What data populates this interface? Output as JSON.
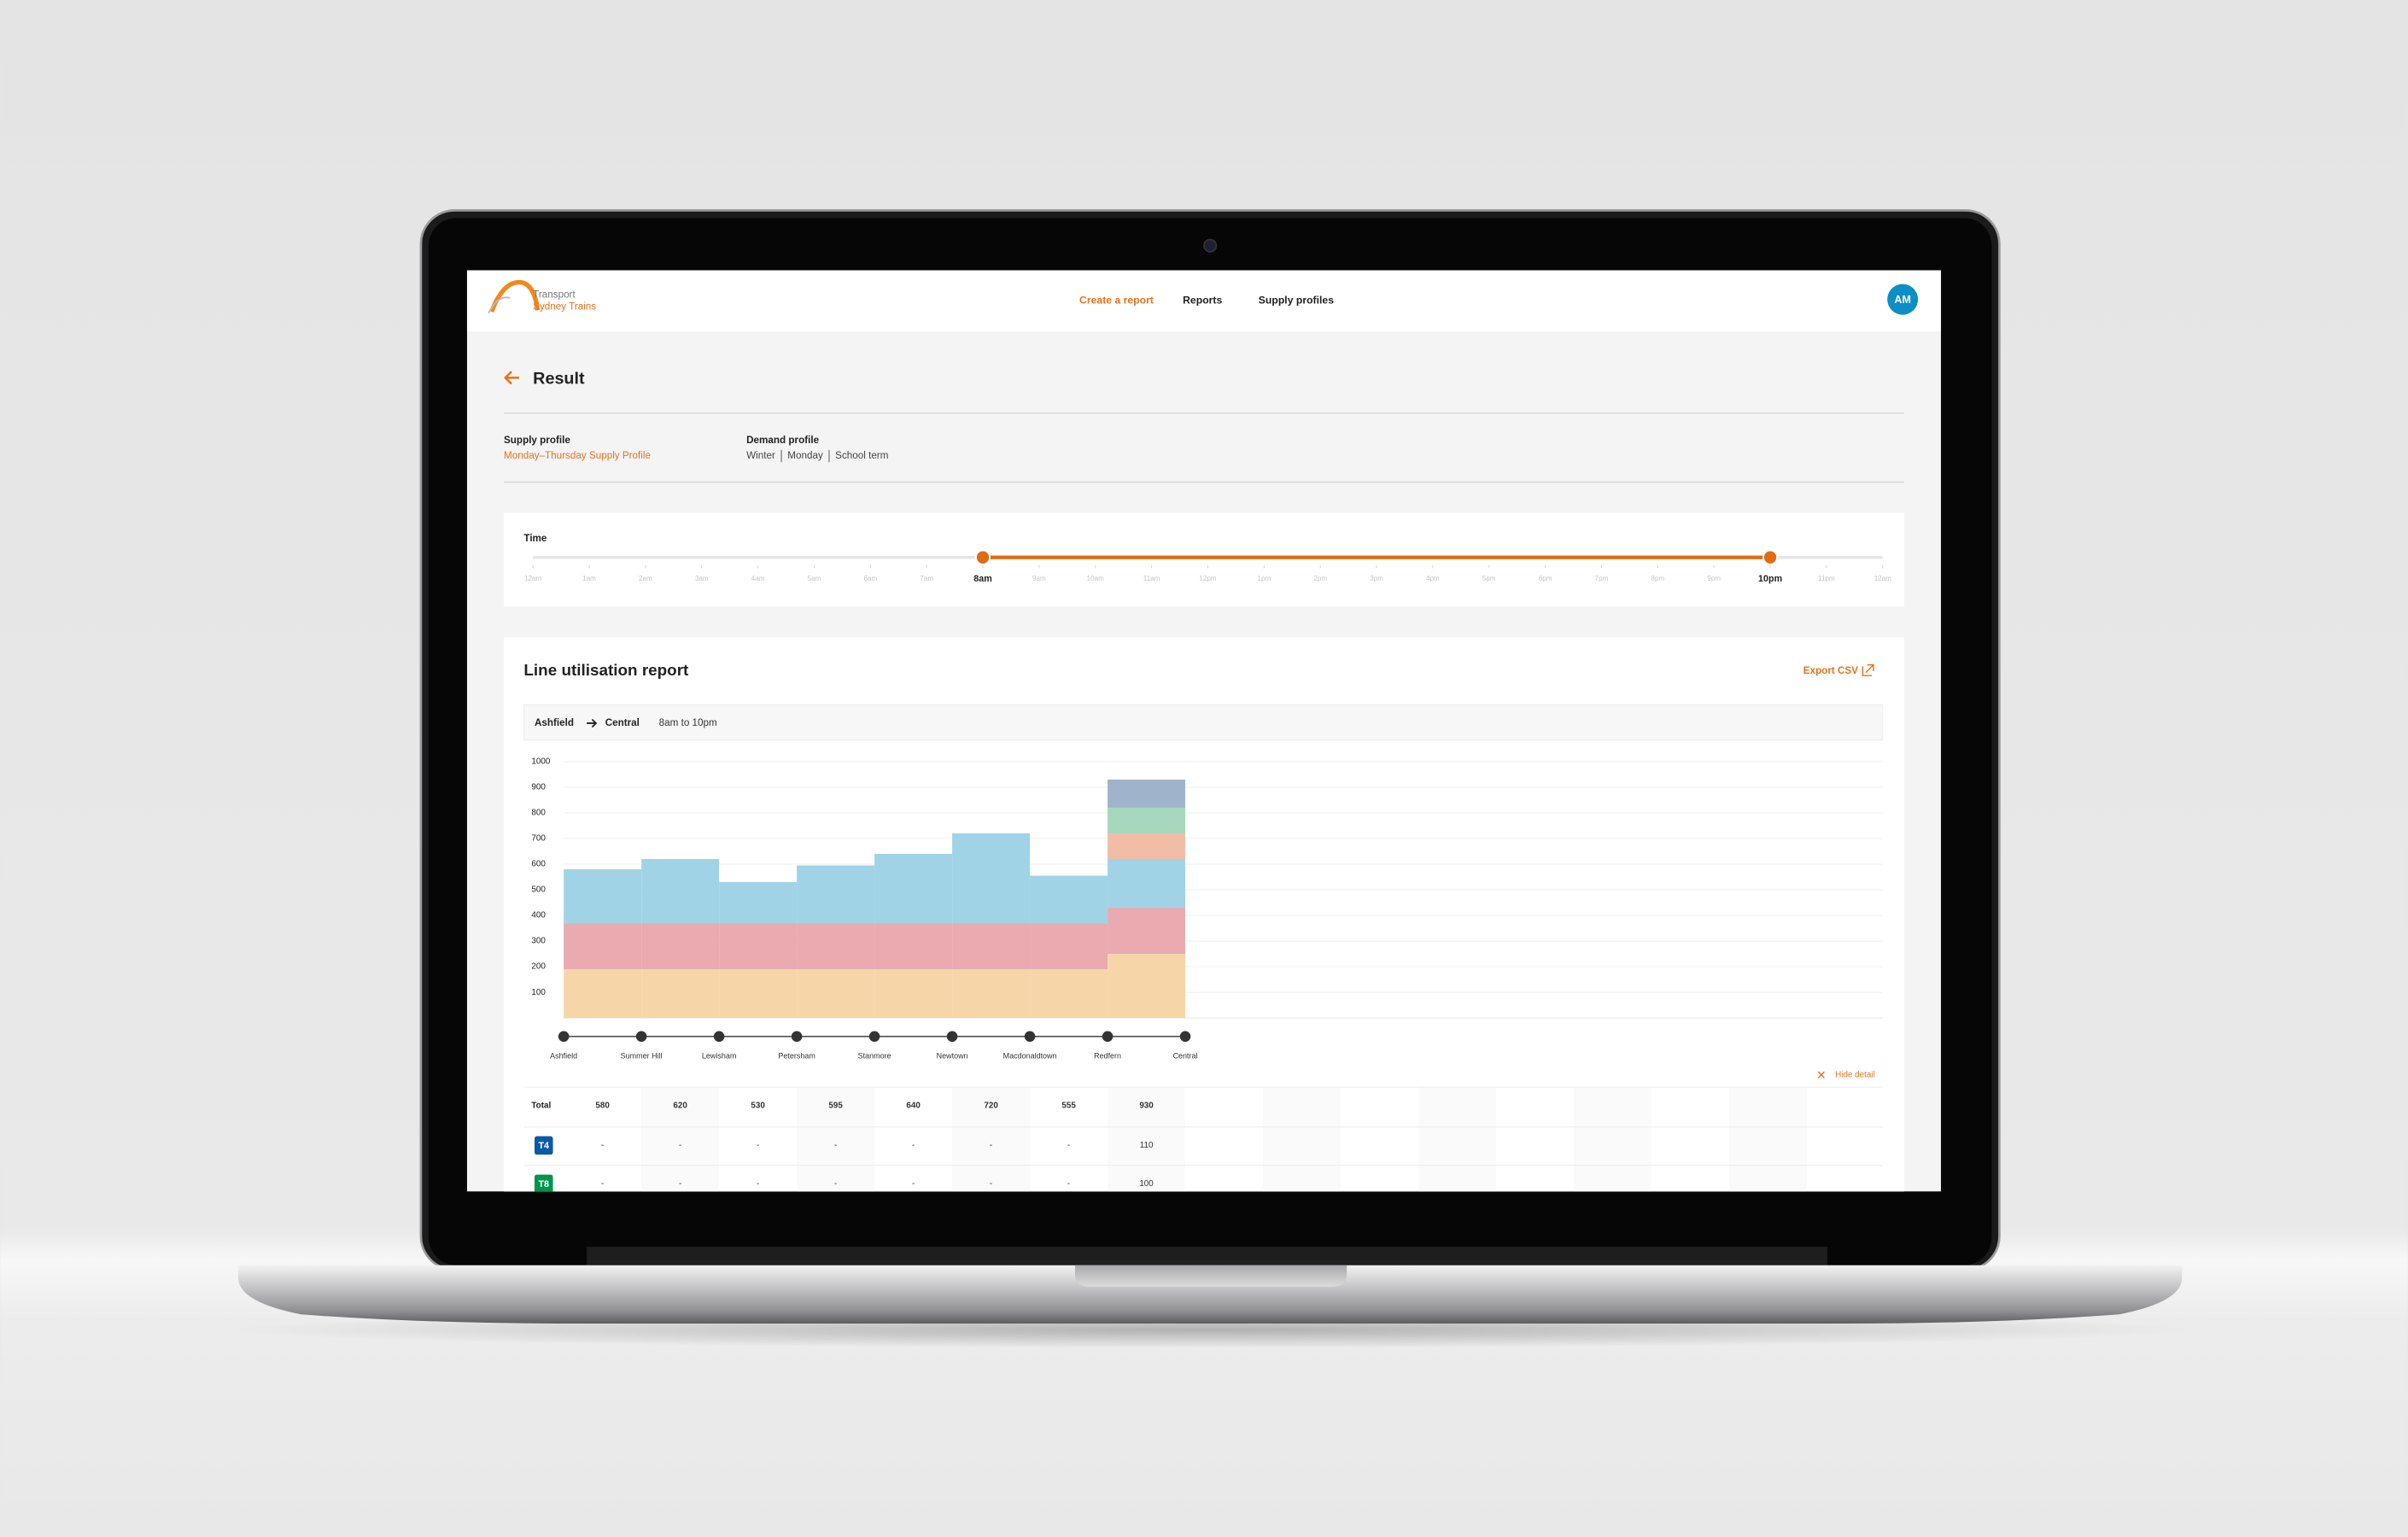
{
  "header": {
    "logo": [
      "Transport",
      "Sydney Trains"
    ],
    "nav": [
      "Create a report",
      "Reports",
      "Supply profiles"
    ],
    "active_nav": 0,
    "avatar": "AM"
  },
  "page": {
    "title": "Result",
    "supply_label": "Supply profile",
    "supply_value": "Monday–Thursday Supply Profile",
    "demand_label": "Demand profile",
    "demand_values": [
      "Winter",
      "Monday",
      "School term"
    ]
  },
  "time": {
    "label": "Time",
    "ticks": [
      "12am",
      "1am",
      "2am",
      "3am",
      "4am",
      "5am",
      "6am",
      "7am",
      "8am",
      "9am",
      "10am",
      "11am",
      "12pm",
      "1pm",
      "2pm",
      "3pm",
      "4pm",
      "5pm",
      "6pm",
      "7pm",
      "8pm",
      "9pm",
      "10pm",
      "11pm",
      "12am"
    ],
    "start": 8,
    "end": 22
  },
  "report": {
    "title": "Line utilisation report",
    "export": "Export CSV",
    "from": "Ashfield",
    "to": "Central",
    "period": "8am to 10pm",
    "hide": "Hide detail"
  },
  "chart_data": {
    "type": "stacked_bar",
    "stations": [
      "Ashfield",
      "Summer Hill",
      "Lewisham",
      "Petersham",
      "Stanmore",
      "Newtown",
      "Macdonaldtown",
      "Redfern",
      "Central"
    ],
    "ylim": [
      0,
      1000
    ],
    "yticks": [
      100,
      200,
      300,
      400,
      500,
      600,
      700,
      800,
      900,
      1000
    ],
    "grid": true,
    "series": [
      {
        "color": "#f6d6a9",
        "values": [
          190,
          190,
          190,
          190,
          190,
          190,
          190,
          250
        ]
      },
      {
        "color": "#e9aab0",
        "values": [
          180,
          180,
          180,
          180,
          180,
          180,
          180,
          180
        ]
      },
      {
        "color": "#a0d3e6",
        "values": [
          210,
          250,
          160,
          225,
          270,
          350,
          185,
          190
        ]
      },
      {
        "color": "#f2bda7",
        "values": [
          null,
          null,
          null,
          null,
          null,
          null,
          null,
          100
        ]
      },
      {
        "name": "T8",
        "color": "#a6d8bd",
        "values": [
          null,
          null,
          null,
          null,
          null,
          null,
          null,
          100
        ]
      },
      {
        "name": "T4",
        "color": "#9fb4cb",
        "values": [
          null,
          null,
          null,
          null,
          null,
          null,
          null,
          110
        ]
      }
    ]
  },
  "table": {
    "rows": [
      {
        "label": "Total",
        "cells": [
          580,
          620,
          530,
          595,
          640,
          720,
          555,
          930
        ]
      },
      {
        "label": "T4",
        "color": "#0b5aa5",
        "cells": [
          "-",
          "-",
          "-",
          "-",
          "-",
          "-",
          "-",
          110
        ]
      },
      {
        "label": "T8",
        "color": "#00954c",
        "cells": [
          "-",
          "-",
          "-",
          "-",
          "-",
          "-",
          "-",
          100
        ]
      }
    ]
  }
}
